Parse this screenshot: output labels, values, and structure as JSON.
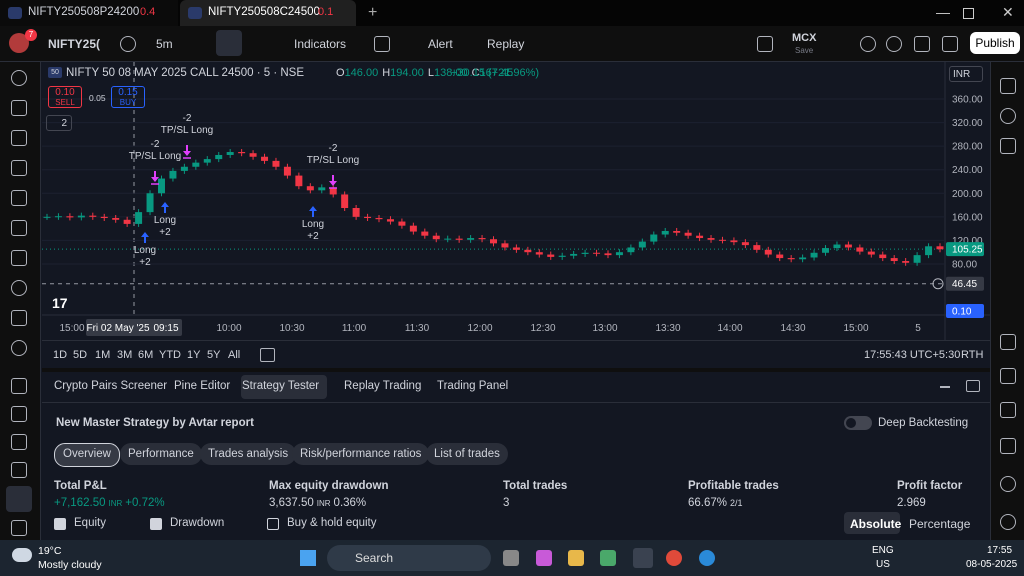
{
  "tabs": [
    {
      "symbol": "NIFTY250508P24200",
      "change": "0.4"
    },
    {
      "symbol": "NIFTY250508C24500",
      "change": "0.1"
    }
  ],
  "toolbar": {
    "badge": "7",
    "symbol": "NIFTY25(",
    "interval": "5m",
    "indicators": "Indicators",
    "alert": "Alert",
    "replay": "Replay",
    "exchange": "MCX",
    "save": "Save",
    "publish": "Publish"
  },
  "chart": {
    "title": "NIFTY 50 08 MAY 2025 CALL 24500 · 5 · NSE",
    "ohlc": [
      {
        "key": "O",
        "value": "146.00"
      },
      {
        "key": "H",
        "value": "194.00"
      },
      {
        "key": "L",
        "value": "138.00"
      },
      {
        "key": "C",
        "value": "167.45"
      }
    ],
    "change": "+30.15 (+21.96%)",
    "sell": {
      "price": "0.10",
      "label": "SELL"
    },
    "spread": "0.05",
    "buy": {
      "price": "0.15",
      "label": "BUY"
    },
    "collapsed": "2",
    "currency": "INR",
    "ylim": [
      0,
      415
    ],
    "yticks": [
      {
        "value": 80,
        "label": "80.00"
      },
      {
        "value": 120,
        "label": "120.00"
      },
      {
        "value": 160,
        "label": "160.00"
      },
      {
        "value": 200,
        "label": "200.00"
      },
      {
        "value": 240,
        "label": "240.00"
      },
      {
        "value": 280,
        "label": "280.00"
      },
      {
        "value": 320,
        "label": "320.00"
      },
      {
        "value": 360,
        "label": "360.00"
      }
    ],
    "price_labels": [
      {
        "value": 105.25,
        "label": "105.25"
      },
      {
        "value": 46.45,
        "label": "46.45"
      },
      {
        "value": 0.1,
        "label": "0.10"
      }
    ],
    "closes": [
      160,
      161,
      159,
      162,
      160,
      158,
      155,
      148,
      168,
      200,
      225,
      238,
      245,
      252,
      258,
      265,
      270,
      268,
      262,
      255,
      245,
      230,
      212,
      205,
      210,
      198,
      175,
      160,
      158,
      156,
      152,
      145,
      135,
      128,
      122,
      123,
      121,
      124,
      122,
      115,
      108,
      104,
      100,
      96,
      92,
      94,
      97,
      99,
      98,
      95,
      100,
      108,
      118,
      130,
      136,
      133,
      128,
      124,
      121,
      120,
      117,
      112,
      104,
      96,
      90,
      88,
      91,
      99,
      107,
      113,
      108,
      101,
      96,
      90,
      85,
      82,
      95,
      110,
      105
    ],
    "xticks": [
      "15:00",
      "Fri 02 May '25",
      "09:15",
      "10:00",
      "10:30",
      "11:00",
      "11:30",
      "12:00",
      "12:30",
      "13:00",
      "13:30",
      "14:00",
      "14:30",
      "15:00",
      "5"
    ],
    "annotations": [
      {
        "kind": "long",
        "text": "Long",
        "qty": "+2"
      },
      {
        "kind": "long",
        "text": "Long",
        "qty": "+2"
      },
      {
        "kind": "long",
        "text": "Long",
        "qty": "+2"
      },
      {
        "kind": "exit",
        "text": "TP/SL Long",
        "qty": "-2"
      },
      {
        "kind": "exit",
        "text": "TP/SL Long",
        "qty": "-2"
      },
      {
        "kind": "exit",
        "text": "TP/SL Long",
        "qty": "-2"
      }
    ]
  },
  "range": {
    "buttons": [
      "1D",
      "5D",
      "1M",
      "3M",
      "6M",
      "YTD",
      "1Y",
      "5Y",
      "All"
    ],
    "clock": "17:55:43 UTC+5:30",
    "session": "RTH"
  },
  "panel": {
    "tabs": [
      "Crypto Pairs Screener",
      "Pine Editor",
      "Strategy Tester",
      "Replay Trading",
      "Trading Panel"
    ],
    "strategy": "New Master Strategy by Avtar report",
    "deep": "Deep Backtesting",
    "subtabs": [
      "Overview",
      "Performance",
      "Trades analysis",
      "Risk/performance ratios",
      "List of trades"
    ],
    "metrics": [
      {
        "label": "Total P&L",
        "value": "+7,162.50",
        "unit": "INR",
        "extra": "+0.72%"
      },
      {
        "label": "Max equity drawdown",
        "value": "3,637.50",
        "unit": "INR",
        "extra": "0.36%"
      },
      {
        "label": "Total trades",
        "value": "3"
      },
      {
        "label": "Profitable trades",
        "value": "66.67%",
        "extra": "2/1"
      },
      {
        "label": "Profit factor",
        "value": "2.969"
      }
    ],
    "checks": [
      "Equity",
      "Drawdown",
      "Buy & hold equity"
    ],
    "modes": [
      "Absolute",
      "Percentage"
    ]
  },
  "taskbar": {
    "temp": "19°C",
    "weather": "Mostly cloudy",
    "search": "Search",
    "lang": "ENG",
    "region": "US",
    "time": "17:55",
    "date": "08-05-2025"
  }
}
